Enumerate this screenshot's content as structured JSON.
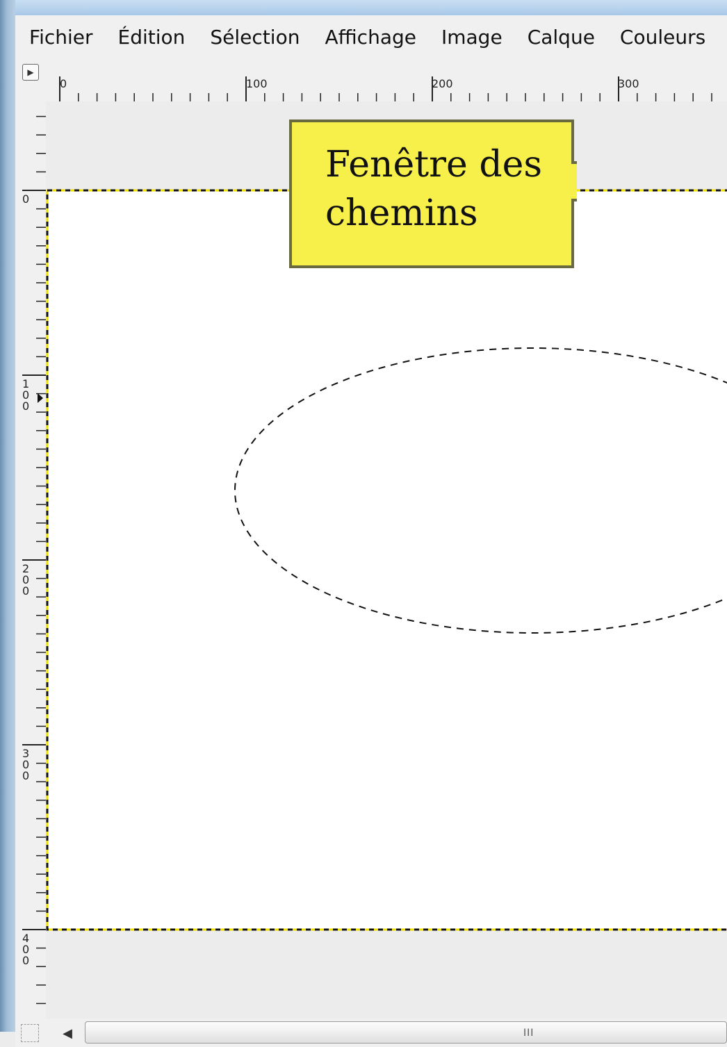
{
  "menu": {
    "items": [
      {
        "label": "Fichier"
      },
      {
        "label": "Édition"
      },
      {
        "label": "Sélection"
      },
      {
        "label": "Affichage"
      },
      {
        "label": "Image"
      },
      {
        "label": "Calque"
      },
      {
        "label": "Couleurs"
      }
    ]
  },
  "ruler": {
    "horizontal": [
      "0",
      "100",
      "200",
      "300"
    ],
    "vertical": [
      "0",
      "100",
      "200",
      "300",
      "400"
    ]
  },
  "annotation": {
    "line1": "Fenêtre des",
    "line2": "chemins"
  },
  "scrollbar": {
    "left_arrow": "◀",
    "grip": "III"
  },
  "icons": {
    "ruler_menu": "triangle-right-icon",
    "navigate": "navigate-icon"
  },
  "colors": {
    "callout_fill": "#f7f04a",
    "callout_border": "#6a6a40",
    "selection_dash": "#000000",
    "image_boundary": "#f0e000"
  }
}
